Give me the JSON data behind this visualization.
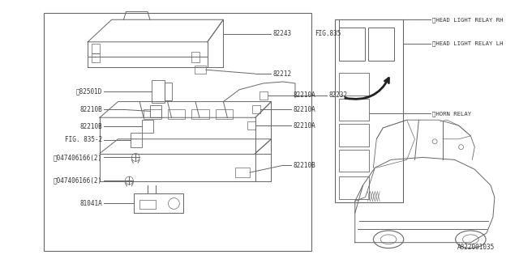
{
  "bg_color": "#ffffff",
  "lc": "#666666",
  "tc": "#333333",
  "title": "A822001035",
  "fig835_label": "FIG.835",
  "fig835_2_label": "FIG. 835-2",
  "relay_rh": "①HEAD LIGHT RELAY RH",
  "relay_lh": "①HEAD LIGHT RELAY LH",
  "horn_relay": "①HORN RELAY"
}
